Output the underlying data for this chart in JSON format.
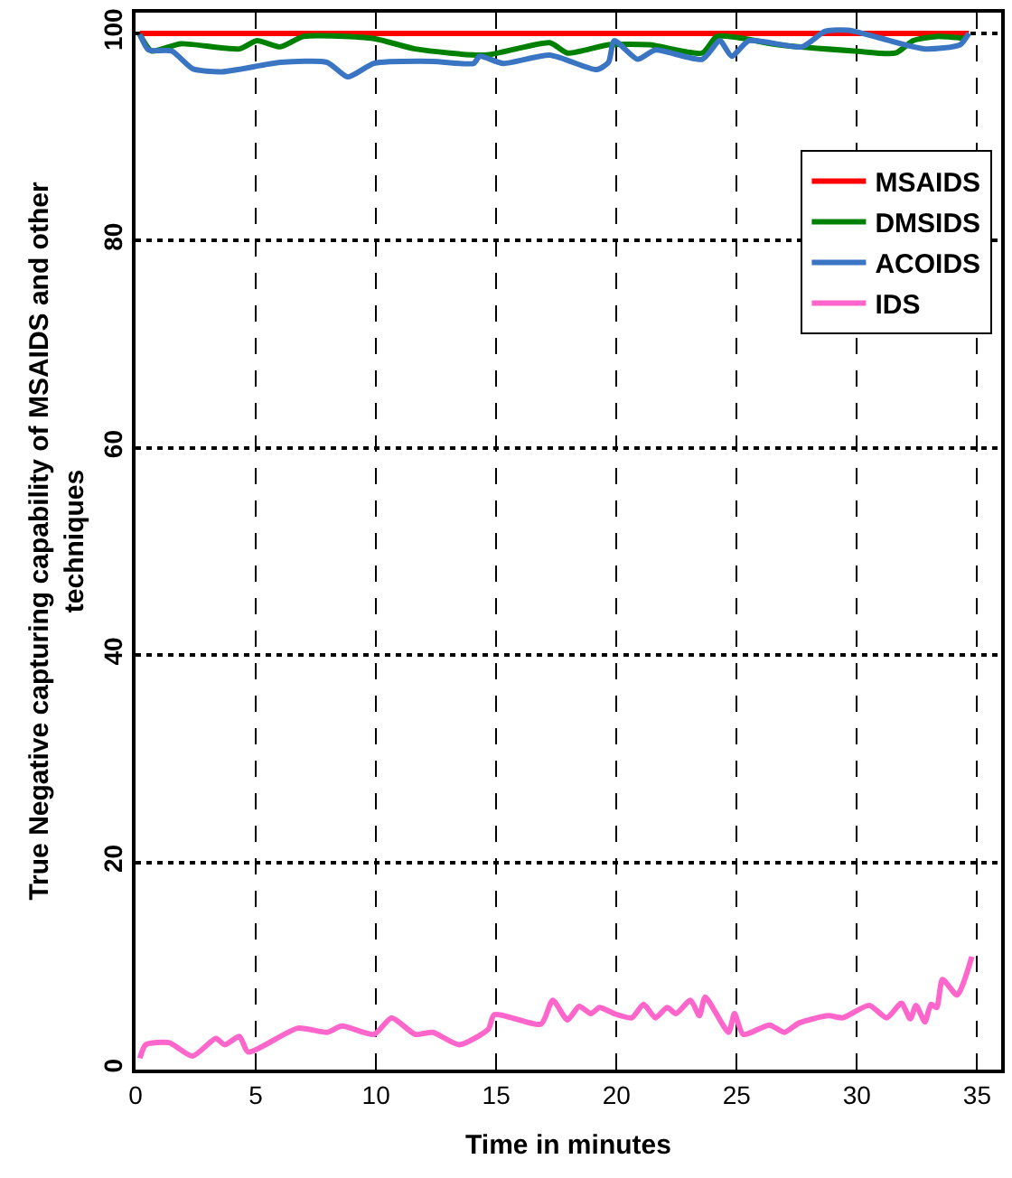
{
  "chart_data": {
    "type": "line",
    "xlabel": "Time in minutes",
    "ylabel": "True Negative capturing capability of MSAIDS and other techniques",
    "xlim": [
      0,
      36
    ],
    "xticks": [
      0,
      5,
      10,
      15,
      20,
      25,
      30,
      35
    ],
    "ylim": [
      0,
      102
    ],
    "yticks": [
      0,
      20,
      40,
      60,
      80,
      100
    ],
    "grid": true,
    "legend": "top right",
    "marker": "none",
    "line_style": "solid",
    "series": [
      {
        "name": "MSAIDS",
        "color": "#ff0000",
        "x": [
          0.18,
          34.66
        ],
        "values": [
          100,
          100
        ]
      },
      {
        "name": "DMSIDS",
        "color": "#008000",
        "x": [
          0.18,
          0.67,
          1.88,
          4.32,
          5.05,
          6.02,
          6.99,
          9.92,
          11.63,
          14.55,
          17.23,
          17.96,
          19.67,
          21.37,
          23.57,
          24.17,
          25.03,
          26.73,
          29.9,
          31.61,
          32.34,
          33.31,
          34.53
        ],
        "values": [
          99.9,
          98.3,
          99.0,
          98.5,
          99.3,
          98.7,
          99.7,
          99.5,
          98.5,
          97.9,
          99.1,
          98.1,
          98.9,
          98.9,
          98.1,
          99.7,
          99.6,
          98.9,
          98.3,
          98.1,
          99.3,
          99.7,
          99.5
        ]
      },
      {
        "name": "ACOIDS",
        "color": "#3a75c4",
        "x": [
          0.18,
          0.54,
          1.51,
          2.37,
          3.59,
          6.02,
          7.97,
          8.82,
          9.92,
          12.36,
          14.06,
          14.31,
          15.29,
          17.23,
          19.18,
          19.67,
          19.91,
          20.88,
          21.62,
          23.57,
          24.3,
          24.79,
          25.52,
          27.71,
          28.68,
          29.66,
          30.88,
          32.83,
          34.29,
          34.66
        ],
        "values": [
          99.9,
          98.4,
          98.3,
          96.6,
          96.3,
          97.2,
          97.2,
          95.8,
          97.1,
          97.3,
          97.1,
          97.8,
          97.1,
          97.9,
          96.5,
          97.2,
          99.3,
          97.5,
          98.4,
          97.5,
          99.3,
          97.8,
          99.3,
          98.7,
          100.2,
          100.3,
          99.6,
          98.5,
          98.9,
          100
        ]
      },
      {
        "name": "IDS",
        "color": "#ff66cc",
        "x": [
          0.18,
          0.42,
          1.39,
          2.37,
          3.34,
          3.71,
          4.32,
          4.68,
          6.75,
          7.97,
          8.58,
          9.92,
          10.65,
          11.63,
          12.36,
          13.46,
          14.67,
          14.92,
          16.87,
          17.35,
          17.96,
          18.45,
          18.94,
          19.3,
          19.91,
          20.64,
          21.13,
          21.62,
          22.11,
          22.47,
          23.08,
          23.45,
          23.69,
          24.66,
          24.91,
          25.27,
          26.37,
          26.98,
          27.59,
          28.81,
          29.42,
          30.51,
          31.24,
          31.85,
          32.22,
          32.46,
          32.83,
          33.08,
          33.32,
          33.56,
          34.17,
          34.78
        ],
        "values": [
          1.1,
          2.4,
          2.6,
          1.3,
          3.0,
          2.4,
          3.2,
          1.7,
          4.0,
          3.6,
          4.2,
          3.4,
          5.0,
          3.4,
          3.6,
          2.4,
          3.9,
          5.3,
          4.4,
          6.7,
          4.8,
          6.1,
          5.4,
          6.0,
          5.4,
          5.0,
          6.3,
          5.0,
          6.0,
          5.4,
          6.7,
          5.2,
          7.0,
          3.6,
          5.4,
          3.4,
          4.3,
          3.6,
          4.5,
          5.2,
          5.0,
          6.2,
          5.0,
          6.4,
          4.9,
          6.2,
          4.6,
          6.3,
          6.0,
          8.7,
          7.2,
          10.9
        ]
      }
    ]
  }
}
